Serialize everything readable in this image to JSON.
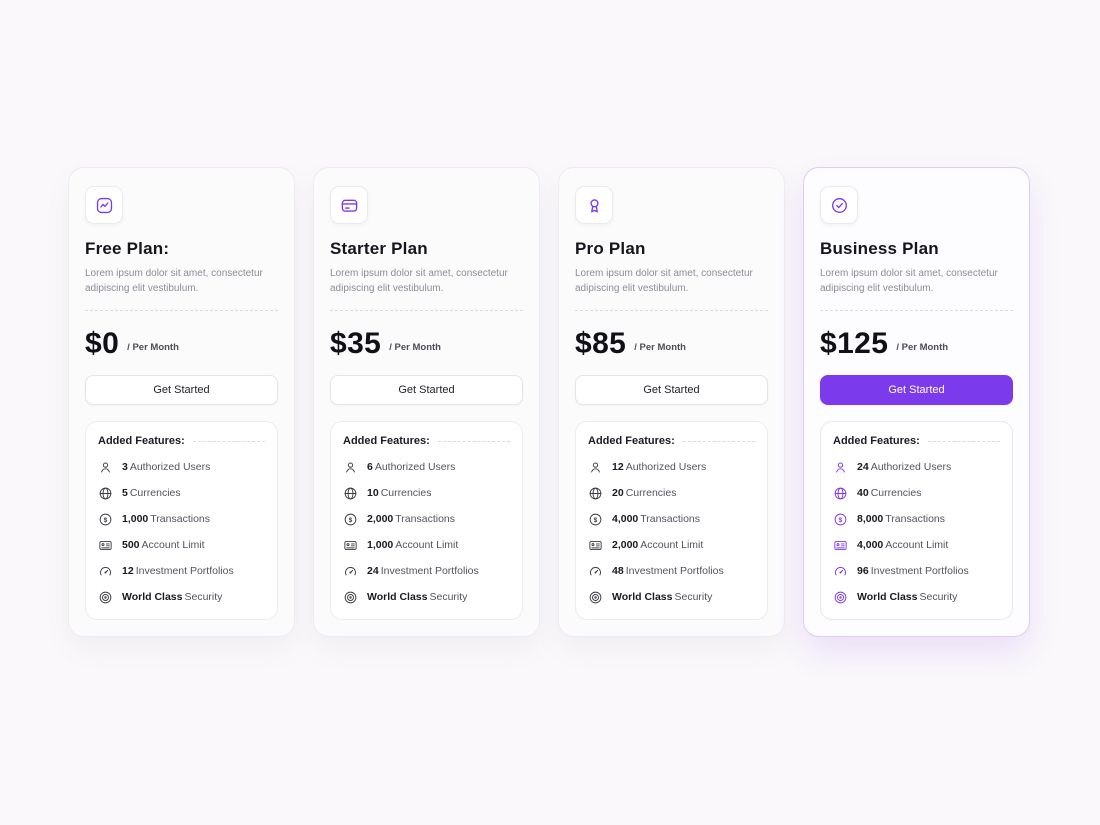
{
  "colors": {
    "accent": "#7C3AED"
  },
  "cards": [
    {
      "id": "free",
      "icon": "activity-frame-icon",
      "title": "Free Plan:",
      "description": "Lorem ipsum dolor sit amet, consectetur adipiscing elit vestibulum.",
      "price": "$0",
      "period": "/ Per Month",
      "cta": "Get Started",
      "highlighted": false,
      "features_label": "Added Features:",
      "features": [
        {
          "icon": "user-icon",
          "value": "3",
          "label": "Authorized Users"
        },
        {
          "icon": "globe-icon",
          "value": "5",
          "label": "Currencies"
        },
        {
          "icon": "dollar-circle-icon",
          "value": "1,000",
          "label": "Transactions"
        },
        {
          "icon": "card-icon",
          "value": "500",
          "label": "Account Limit"
        },
        {
          "icon": "gauge-icon",
          "value": "12",
          "label": "Investment Portfolios"
        },
        {
          "icon": "target-icon",
          "value": "World Class",
          "label": "Security"
        }
      ]
    },
    {
      "id": "starter",
      "icon": "wallet-icon",
      "title": "Starter Plan",
      "description": "Lorem ipsum dolor sit amet, consectetur adipiscing elit vestibulum.",
      "price": "$35",
      "period": "/ Per Month",
      "cta": "Get Started",
      "highlighted": false,
      "features_label": "Added Features:",
      "features": [
        {
          "icon": "user-icon",
          "value": "6",
          "label": "Authorized Users"
        },
        {
          "icon": "globe-icon",
          "value": "10",
          "label": "Currencies"
        },
        {
          "icon": "dollar-circle-icon",
          "value": "2,000",
          "label": "Transactions"
        },
        {
          "icon": "card-icon",
          "value": "1,000",
          "label": "Account Limit"
        },
        {
          "icon": "gauge-icon",
          "value": "24",
          "label": "Investment Portfolios"
        },
        {
          "icon": "target-icon",
          "value": "World Class",
          "label": "Security"
        }
      ]
    },
    {
      "id": "pro",
      "icon": "medal-icon",
      "title": "Pro Plan",
      "description": "Lorem ipsum dolor sit amet, consectetur adipiscing elit vestibulum.",
      "price": "$85",
      "period": "/ Per Month",
      "cta": "Get Started",
      "highlighted": false,
      "features_label": "Added Features:",
      "features": [
        {
          "icon": "user-icon",
          "value": "12",
          "label": "Authorized Users"
        },
        {
          "icon": "globe-icon",
          "value": "20",
          "label": "Currencies"
        },
        {
          "icon": "dollar-circle-icon",
          "value": "4,000",
          "label": "Transactions"
        },
        {
          "icon": "card-icon",
          "value": "2,000",
          "label": "Account Limit"
        },
        {
          "icon": "gauge-icon",
          "value": "48",
          "label": "Investment Portfolios"
        },
        {
          "icon": "target-icon",
          "value": "World Class",
          "label": "Security"
        }
      ]
    },
    {
      "id": "business",
      "icon": "check-badge-icon",
      "title": "Business Plan",
      "description": "Lorem ipsum dolor sit amet, consectetur adipiscing elit vestibulum.",
      "price": "$125",
      "period": "/ Per Month",
      "cta": "Get Started",
      "highlighted": true,
      "features_label": "Added Features:",
      "features": [
        {
          "icon": "user-icon",
          "value": "24",
          "label": "Authorized Users"
        },
        {
          "icon": "globe-icon",
          "value": "40",
          "label": "Currencies"
        },
        {
          "icon": "dollar-circle-icon",
          "value": "8,000",
          "label": "Transactions"
        },
        {
          "icon": "card-icon",
          "value": "4,000",
          "label": "Account Limit"
        },
        {
          "icon": "gauge-icon",
          "value": "96",
          "label": "Investment Portfolios"
        },
        {
          "icon": "target-icon",
          "value": "World Class",
          "label": "Security"
        }
      ]
    }
  ]
}
